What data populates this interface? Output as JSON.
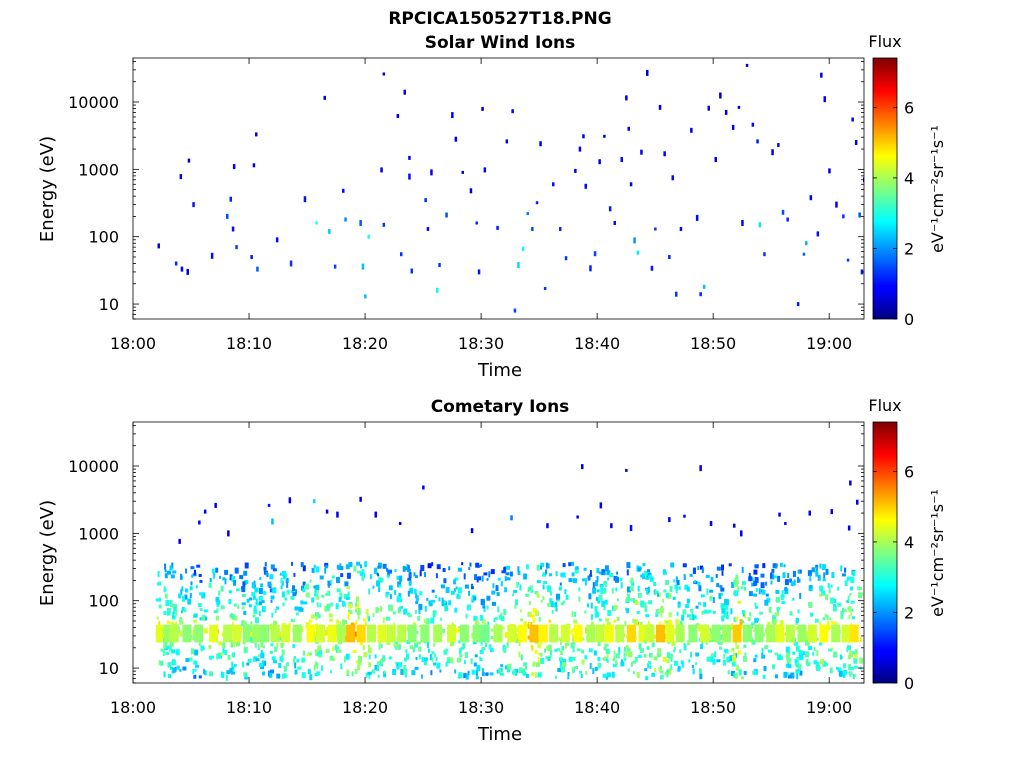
{
  "figure": {
    "title": "RPCICA150527T18.PNG"
  },
  "colorbar": {
    "label": "Flux",
    "unit_label": "eV⁻¹cm⁻²sr⁻¹s⁻¹",
    "ticks": [
      "0",
      "2",
      "4",
      "6"
    ],
    "colormap": "jet",
    "range": [
      0,
      7.4
    ]
  },
  "chart_data": [
    {
      "type": "heatmap",
      "title": "Solar Wind Ions",
      "xlabel": "Time",
      "ylabel": "Energy (eV)",
      "x_ticks": [
        "18:00",
        "18:10",
        "18:20",
        "18:30",
        "18:40",
        "18:50",
        "19:00"
      ],
      "x_tick_minutes": [
        0,
        10,
        20,
        30,
        40,
        50,
        60
      ],
      "xlim_minutes": [
        0,
        63
      ],
      "y_ticks": [
        "10",
        "100",
        "1000",
        "10000"
      ],
      "y_tick_values": [
        10,
        100,
        1000,
        10000
      ],
      "ylim": [
        6,
        45000
      ],
      "yscale": "log",
      "colorbar_label": "Flux",
      "points": [
        [
          2.2,
          73,
          0.8
        ],
        [
          3.7,
          40,
          1.2
        ],
        [
          4.2,
          33,
          0.9
        ],
        [
          4.7,
          30,
          0.8
        ],
        [
          5.2,
          300,
          1.1
        ],
        [
          4.1,
          780,
          0.7
        ],
        [
          4.8,
          1350,
          0.6
        ],
        [
          6.8,
          52,
          1.0
        ],
        [
          8.1,
          200,
          1.5
        ],
        [
          8.4,
          360,
          1.2
        ],
        [
          8.6,
          130,
          1.0
        ],
        [
          8.9,
          70,
          1.4
        ],
        [
          8.7,
          1100,
          0.9
        ],
        [
          10.2,
          50,
          1.1
        ],
        [
          10.7,
          33,
          1.6
        ],
        [
          10.4,
          1150,
          0.6
        ],
        [
          10.6,
          3300,
          0.7
        ],
        [
          12.4,
          90,
          1.0
        ],
        [
          13.6,
          40,
          1.3
        ],
        [
          14.8,
          360,
          1.1
        ],
        [
          15.8,
          160,
          2.9
        ],
        [
          16.5,
          11500,
          0.8
        ],
        [
          16.9,
          120,
          2.4
        ],
        [
          17.4,
          36,
          1.4
        ],
        [
          18.1,
          480,
          1.0
        ],
        [
          18.3,
          180,
          1.9
        ],
        [
          19.6,
          160,
          1.6
        ],
        [
          19.8,
          36,
          2.3
        ],
        [
          20.0,
          13,
          2.3
        ],
        [
          20.3,
          100,
          3.0
        ],
        [
          21.4,
          980,
          0.7
        ],
        [
          21.6,
          150,
          1.3
        ],
        [
          21.6,
          26000,
          0.6
        ],
        [
          22.8,
          6200,
          0.8
        ],
        [
          23.1,
          55,
          1.3
        ],
        [
          23.4,
          14000,
          0.8
        ],
        [
          23.8,
          780,
          1.0
        ],
        [
          23.8,
          1480,
          0.9
        ],
        [
          24.0,
          31,
          1.3
        ],
        [
          25.2,
          350,
          1.2
        ],
        [
          25.4,
          130,
          1.0
        ],
        [
          25.7,
          900,
          0.9
        ],
        [
          26.2,
          16,
          2.8
        ],
        [
          26.4,
          38,
          1.3
        ],
        [
          27.0,
          210,
          1.5
        ],
        [
          27.5,
          6400,
          0.9
        ],
        [
          27.8,
          2800,
          0.8
        ],
        [
          28.4,
          900,
          0.7
        ],
        [
          29.1,
          480,
          0.7
        ],
        [
          29.6,
          160,
          1.2
        ],
        [
          29.8,
          30,
          1.1
        ],
        [
          30.1,
          7900,
          0.7
        ],
        [
          30.3,
          980,
          0.8
        ],
        [
          31.4,
          135,
          1.1
        ],
        [
          32.2,
          2600,
          0.8
        ],
        [
          32.7,
          7300,
          0.9
        ],
        [
          32.9,
          8,
          1.4
        ],
        [
          33.2,
          38,
          2.5
        ],
        [
          33.6,
          66,
          2.8
        ],
        [
          34.0,
          220,
          1.8
        ],
        [
          34.4,
          130,
          1.5
        ],
        [
          34.8,
          320,
          1.2
        ],
        [
          35.1,
          2400,
          0.8
        ],
        [
          35.5,
          17,
          1.3
        ],
        [
          36.2,
          600,
          1.0
        ],
        [
          36.8,
          130,
          1.2
        ],
        [
          37.3,
          48,
          1.3
        ],
        [
          38.1,
          950,
          0.9
        ],
        [
          38.5,
          2000,
          0.8
        ],
        [
          38.8,
          3100,
          0.7
        ],
        [
          39.0,
          560,
          1.0
        ],
        [
          39.4,
          34,
          1.2
        ],
        [
          39.8,
          56,
          1.4
        ],
        [
          40.2,
          1300,
          0.8
        ],
        [
          40.6,
          3100,
          0.7
        ],
        [
          41.1,
          260,
          1.1
        ],
        [
          41.5,
          160,
          1.0
        ],
        [
          42.1,
          1400,
          1.0
        ],
        [
          42.5,
          11500,
          0.7
        ],
        [
          42.7,
          4000,
          0.7
        ],
        [
          42.9,
          600,
          0.9
        ],
        [
          43.2,
          88,
          2.0
        ],
        [
          43.5,
          58,
          2.6
        ],
        [
          43.8,
          1800,
          0.8
        ],
        [
          44.3,
          27000,
          0.6
        ],
        [
          44.7,
          34,
          1.1
        ],
        [
          45.0,
          130,
          1.3
        ],
        [
          45.4,
          8300,
          0.8
        ],
        [
          45.8,
          1700,
          0.9
        ],
        [
          46.2,
          50,
          1.2
        ],
        [
          46.5,
          750,
          1.0
        ],
        [
          46.8,
          14,
          1.3
        ],
        [
          47.2,
          130,
          1.0
        ],
        [
          48.1,
          3800,
          0.8
        ],
        [
          48.6,
          190,
          1.0
        ],
        [
          48.9,
          14,
          1.2
        ],
        [
          49.2,
          18,
          2.3
        ],
        [
          49.6,
          8100,
          0.9
        ],
        [
          50.2,
          1400,
          0.7
        ],
        [
          50.6,
          12500,
          0.6
        ],
        [
          51.1,
          7000,
          0.7
        ],
        [
          51.7,
          4200,
          0.8
        ],
        [
          52.2,
          8300,
          0.7
        ],
        [
          52.5,
          160,
          1.0
        ],
        [
          52.9,
          35000,
          0.6
        ],
        [
          53.4,
          4600,
          0.9
        ],
        [
          53.8,
          2600,
          1.1
        ],
        [
          54.0,
          150,
          2.6
        ],
        [
          54.4,
          55,
          1.3
        ],
        [
          55.1,
          1800,
          0.8
        ],
        [
          55.6,
          2300,
          1.0
        ],
        [
          56.0,
          230,
          1.5
        ],
        [
          56.4,
          180,
          1.2
        ],
        [
          57.3,
          10,
          1.1
        ],
        [
          57.8,
          55,
          1.6
        ],
        [
          58.0,
          80,
          2.2
        ],
        [
          58.4,
          380,
          0.9
        ],
        [
          59.0,
          110,
          1.0
        ],
        [
          59.3,
          25000,
          0.8
        ],
        [
          59.6,
          11000,
          0.9
        ],
        [
          60.0,
          950,
          0.8
        ],
        [
          60.6,
          300,
          0.9
        ],
        [
          61.2,
          200,
          1.3
        ],
        [
          61.6,
          45,
          1.4
        ],
        [
          62.0,
          5500,
          0.9
        ],
        [
          62.3,
          2500,
          0.8
        ],
        [
          62.6,
          210,
          1.5
        ],
        [
          62.8,
          30,
          1.2
        ],
        [
          63.0,
          700,
          0.8
        ]
      ]
    },
    {
      "type": "heatmap",
      "title": "Cometary Ions",
      "xlabel": "Time",
      "ylabel": "Energy (eV)",
      "x_ticks": [
        "18:00",
        "18:10",
        "18:20",
        "18:30",
        "18:40",
        "18:50",
        "19:00"
      ],
      "x_tick_minutes": [
        0,
        10,
        20,
        30,
        40,
        50,
        60
      ],
      "xlim_minutes": [
        0,
        63
      ],
      "y_ticks": [
        "10",
        "100",
        "1000",
        "10000"
      ],
      "y_tick_values": [
        10,
        100,
        1000,
        10000
      ],
      "ylim": [
        6,
        45000
      ],
      "yscale": "log",
      "colorbar_label": "Flux",
      "bursts": [
        [
          2.4,
          4.0
        ],
        [
          3.1,
          3.5
        ],
        [
          3.6,
          3.7
        ],
        [
          4.7,
          3.4
        ],
        [
          5.7,
          3.4
        ],
        [
          7.0,
          4.0
        ],
        [
          8.2,
          3.7
        ],
        [
          9.0,
          3.9
        ],
        [
          9.9,
          3.4
        ],
        [
          10.7,
          3.5
        ],
        [
          11.4,
          3.4
        ],
        [
          12.3,
          3.7
        ],
        [
          13.2,
          3.9
        ],
        [
          14.2,
          3.5
        ],
        [
          15.4,
          4.2
        ],
        [
          16.2,
          3.9
        ],
        [
          17.2,
          4.1
        ],
        [
          18.0,
          3.6
        ],
        [
          18.8,
          4.7
        ],
        [
          19.7,
          4.5
        ],
        [
          20.6,
          3.7
        ],
        [
          21.5,
          4.0
        ],
        [
          22.3,
          3.8
        ],
        [
          23.2,
          3.7
        ],
        [
          24.1,
          3.4
        ],
        [
          25.2,
          3.4
        ],
        [
          26.3,
          3.6
        ],
        [
          27.5,
          3.9
        ],
        [
          28.6,
          3.4
        ],
        [
          29.7,
          3.4
        ],
        [
          30.4,
          3.2
        ],
        [
          31.5,
          3.6
        ],
        [
          32.7,
          3.9
        ],
        [
          33.6,
          4.2
        ],
        [
          34.6,
          4.7
        ],
        [
          35.4,
          4.3
        ],
        [
          36.3,
          3.7
        ],
        [
          37.3,
          3.9
        ],
        [
          38.4,
          4.2
        ],
        [
          39.5,
          3.6
        ],
        [
          40.3,
          3.8
        ],
        [
          41.1,
          4.1
        ],
        [
          42.0,
          3.7
        ],
        [
          43.0,
          4.5
        ],
        [
          44.0,
          4.0
        ],
        [
          44.6,
          3.8
        ],
        [
          45.5,
          4.7
        ],
        [
          46.3,
          4.0
        ],
        [
          47.2,
          3.6
        ],
        [
          48.3,
          3.4
        ],
        [
          49.3,
          3.9
        ],
        [
          50.3,
          3.4
        ],
        [
          51.2,
          3.5
        ],
        [
          52.1,
          4.6
        ],
        [
          53.0,
          3.4
        ],
        [
          54.0,
          3.4
        ],
        [
          55.0,
          3.6
        ],
        [
          55.8,
          4.0
        ],
        [
          56.7,
          3.7
        ],
        [
          57.7,
          3.5
        ],
        [
          58.6,
          3.9
        ],
        [
          59.6,
          4.2
        ],
        [
          60.6,
          3.6
        ],
        [
          61.5,
          3.9
        ],
        [
          62.2,
          4.4
        ]
      ],
      "points": [
        [
          4.0,
          760,
          0.8
        ],
        [
          5.7,
          1450,
          0.9
        ],
        [
          6.2,
          2100,
          0.8
        ],
        [
          7.1,
          2600,
          0.7
        ],
        [
          8.2,
          1000,
          0.6
        ],
        [
          11.7,
          2600,
          1.0
        ],
        [
          12.0,
          1500,
          2.3
        ],
        [
          13.5,
          3100,
          0.7
        ],
        [
          15.6,
          3000,
          2.5
        ],
        [
          16.7,
          2100,
          0.7
        ],
        [
          17.6,
          1900,
          0.9
        ],
        [
          19.6,
          3200,
          0.8
        ],
        [
          20.9,
          1900,
          0.8
        ],
        [
          23.0,
          1400,
          0.8
        ],
        [
          25.0,
          4800,
          0.7
        ],
        [
          29.2,
          1100,
          0.8
        ],
        [
          32.6,
          1700,
          1.8
        ],
        [
          35.7,
          1300,
          0.9
        ],
        [
          38.3,
          1750,
          0.8
        ],
        [
          40.3,
          2600,
          0.9
        ],
        [
          41.2,
          1300,
          0.8
        ],
        [
          42.5,
          8600,
          0.7
        ],
        [
          42.9,
          1200,
          1.0
        ],
        [
          46.2,
          1600,
          0.9
        ],
        [
          47.5,
          1800,
          0.8
        ],
        [
          48.9,
          9300,
          0.8
        ],
        [
          49.8,
          1400,
          0.8
        ],
        [
          51.8,
          1300,
          0.8
        ],
        [
          52.4,
          1000,
          0.9
        ],
        [
          55.7,
          1900,
          0.9
        ],
        [
          56.2,
          1400,
          1.0
        ],
        [
          58.3,
          2000,
          0.8
        ],
        [
          60.2,
          2100,
          0.8
        ],
        [
          61.8,
          5600,
          0.8
        ],
        [
          62.4,
          2900,
          0.9
        ],
        [
          38.7,
          9800,
          0.8
        ],
        [
          61.7,
          1200,
          0.8
        ]
      ]
    }
  ]
}
